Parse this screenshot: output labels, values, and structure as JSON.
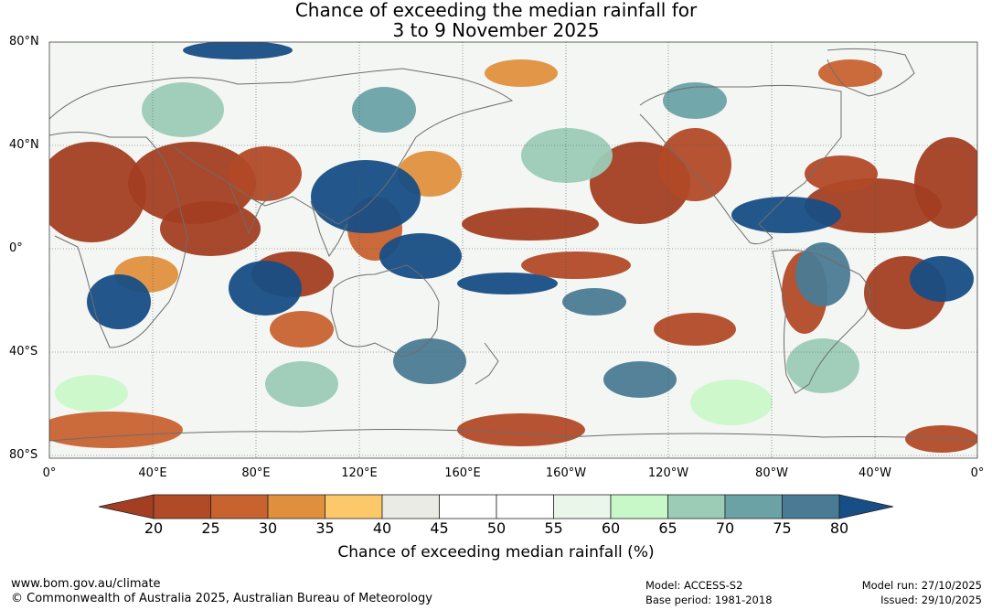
{
  "title": {
    "line1": "Chance of exceeding the median rainfall for",
    "line2": "3 to 9 November 2025"
  },
  "lat_labels": [
    "80°N",
    "40°N",
    "0°",
    "40°S",
    "80°S"
  ],
  "lon_labels": [
    "0°",
    "40°E",
    "80°E",
    "120°E",
    "160°E",
    "160°W",
    "120°W",
    "80°W",
    "40°W",
    "0°"
  ],
  "colorbar": {
    "ticks": [
      "20",
      "25",
      "30",
      "35",
      "40",
      "45",
      "50",
      "55",
      "60",
      "65",
      "70",
      "75",
      "80"
    ],
    "title": "Chance of exceeding median rainfall (%)",
    "colors": [
      "#a33e22",
      "#b14a27",
      "#c8622f",
      "#e0903d",
      "#fcc869",
      "#ebebe6",
      "#ffffff",
      "#ffffff",
      "#ebf6ea",
      "#c9f8c8",
      "#9ccbb6",
      "#6aa2a6",
      "#4a7b94",
      "#174e85"
    ]
  },
  "footer": {
    "url": "www.bom.gov.au/climate",
    "copyright": "© Commonwealth of Australia 2025, Australian Bureau of Meteorology",
    "model": "Model: ACCESS-S2",
    "base_period": "Base period: 1981-2018",
    "model_run": "Model run: 27/10/2025",
    "issued": "Issued: 29/10/2025"
  }
}
